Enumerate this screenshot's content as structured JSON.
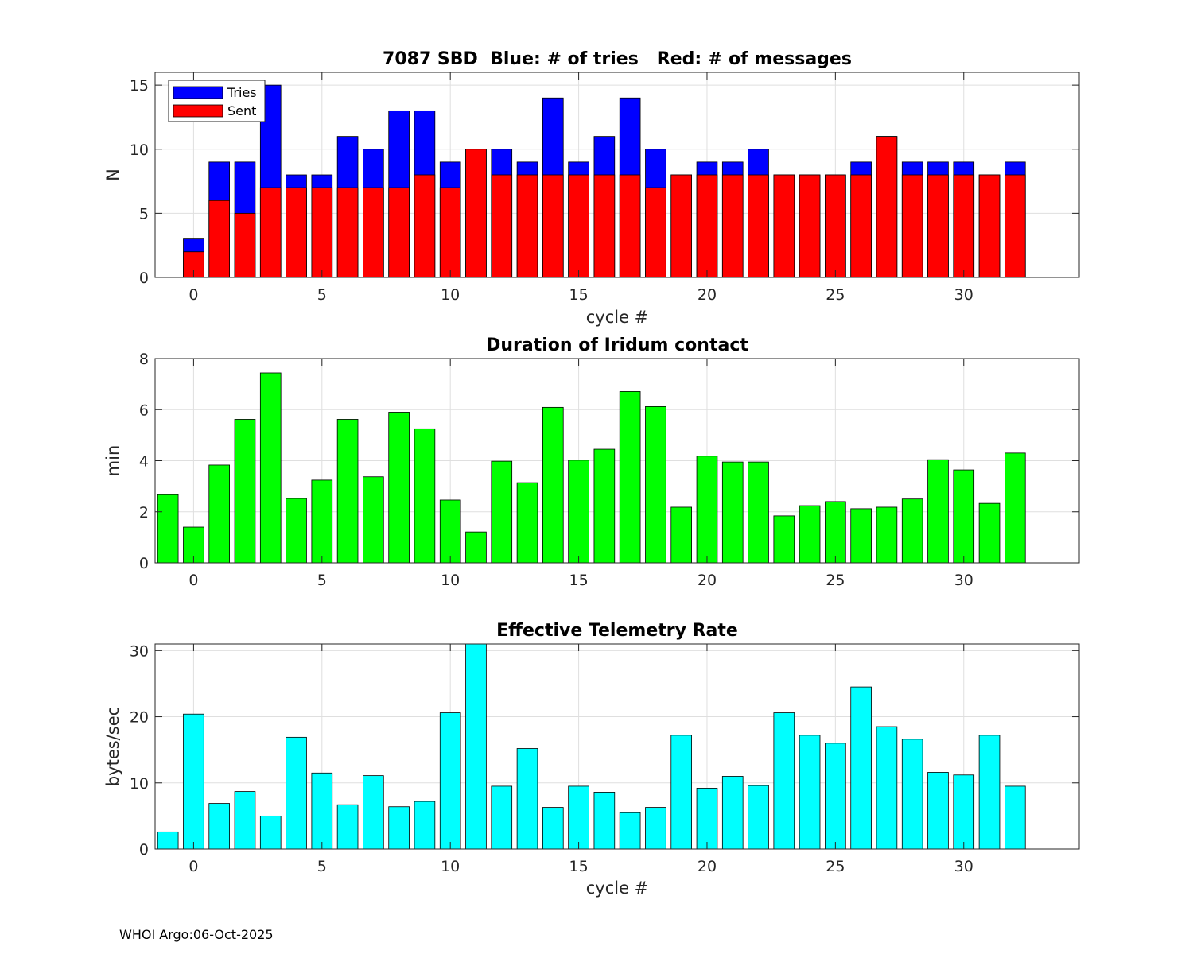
{
  "footer": "WHOI Argo:06-Oct-2025",
  "colors": {
    "tries": "#0000ff",
    "sent": "#ff0000",
    "duration": "#00ff00",
    "rate": "#00ffff",
    "axis": "#262626",
    "grid": "#dfdfdf"
  },
  "chart_data": [
    {
      "type": "bar",
      "title": "7087 SBD  Blue: # of tries   Red: # of messages",
      "xlabel": "cycle #",
      "ylabel": "N",
      "xlim": [
        -1.5,
        34.5
      ],
      "ylim": [
        0,
        16
      ],
      "xticks": [
        "0",
        "5",
        "10",
        "15",
        "20",
        "25",
        "30"
      ],
      "yticks": [
        "0",
        "5",
        "10",
        "15"
      ],
      "legend_position": "top-left",
      "x": [
        0,
        1,
        2,
        3,
        4,
        5,
        6,
        7,
        8,
        9,
        10,
        11,
        12,
        13,
        14,
        15,
        16,
        17,
        18,
        19,
        20,
        21,
        22,
        23,
        24,
        25,
        26,
        27,
        28,
        29,
        30,
        31,
        32
      ],
      "series": [
        {
          "name": "Tries",
          "values": [
            3,
            9,
            9,
            15,
            8,
            8,
            11,
            10,
            13,
            13,
            9,
            10,
            10,
            9,
            14,
            9,
            11,
            14,
            10,
            8,
            9,
            9,
            10,
            8,
            8,
            8,
            9,
            11,
            9,
            9,
            9,
            8,
            9
          ]
        },
        {
          "name": "Sent",
          "values": [
            2,
            6,
            5,
            7,
            7,
            7,
            7,
            7,
            7,
            8,
            7,
            10,
            8,
            8,
            8,
            8,
            8,
            8,
            7,
            8,
            8,
            8,
            8,
            8,
            8,
            8,
            8,
            11,
            8,
            8,
            8,
            8,
            8
          ]
        }
      ]
    },
    {
      "type": "bar",
      "title": "Duration of Iridum contact",
      "xlabel": "",
      "ylabel": "min",
      "xlim": [
        -1.5,
        34.5
      ],
      "ylim": [
        0,
        8
      ],
      "xticks": [
        "0",
        "5",
        "10",
        "15",
        "20",
        "25",
        "30"
      ],
      "yticks": [
        "0",
        "2",
        "4",
        "6",
        "8"
      ],
      "x": [
        -1,
        0,
        1,
        2,
        3,
        4,
        5,
        6,
        7,
        8,
        9,
        10,
        11,
        12,
        13,
        14,
        15,
        16,
        17,
        18,
        19,
        20,
        21,
        22,
        23,
        24,
        25,
        26,
        27,
        28,
        29,
        30,
        31,
        32
      ],
      "values": [
        2.67,
        1.4,
        3.83,
        5.62,
        7.44,
        2.52,
        3.24,
        5.62,
        3.37,
        5.9,
        5.25,
        2.46,
        1.21,
        3.98,
        3.14,
        6.09,
        4.02,
        4.45,
        6.71,
        6.12,
        2.18,
        4.18,
        3.95,
        3.95,
        1.84,
        2.24,
        2.4,
        2.12,
        2.18,
        2.5,
        4.04,
        3.64,
        2.33,
        4.3
      ]
    },
    {
      "type": "bar",
      "title": "Effective Telemetry Rate",
      "xlabel": "cycle #",
      "ylabel": "bytes/sec",
      "xlim": [
        -1.5,
        34.5
      ],
      "ylim": [
        0,
        31
      ],
      "xticks": [
        "0",
        "5",
        "10",
        "15",
        "20",
        "25",
        "30"
      ],
      "yticks": [
        "0",
        "10",
        "20",
        "30"
      ],
      "x": [
        -1,
        0,
        1,
        2,
        3,
        4,
        5,
        6,
        7,
        8,
        9,
        10,
        11,
        12,
        13,
        14,
        15,
        16,
        17,
        18,
        19,
        20,
        21,
        22,
        23,
        24,
        25,
        26,
        27,
        28,
        29,
        30,
        31,
        32
      ],
      "values": [
        2.6,
        20.4,
        6.9,
        8.7,
        5.0,
        16.9,
        11.5,
        6.7,
        11.1,
        6.4,
        7.2,
        20.6,
        31.0,
        9.5,
        15.2,
        6.3,
        9.5,
        8.6,
        5.5,
        6.3,
        17.2,
        9.2,
        11.0,
        9.6,
        20.6,
        17.2,
        16.0,
        24.5,
        18.5,
        16.6,
        11.6,
        11.2,
        17.2,
        9.5
      ]
    }
  ]
}
